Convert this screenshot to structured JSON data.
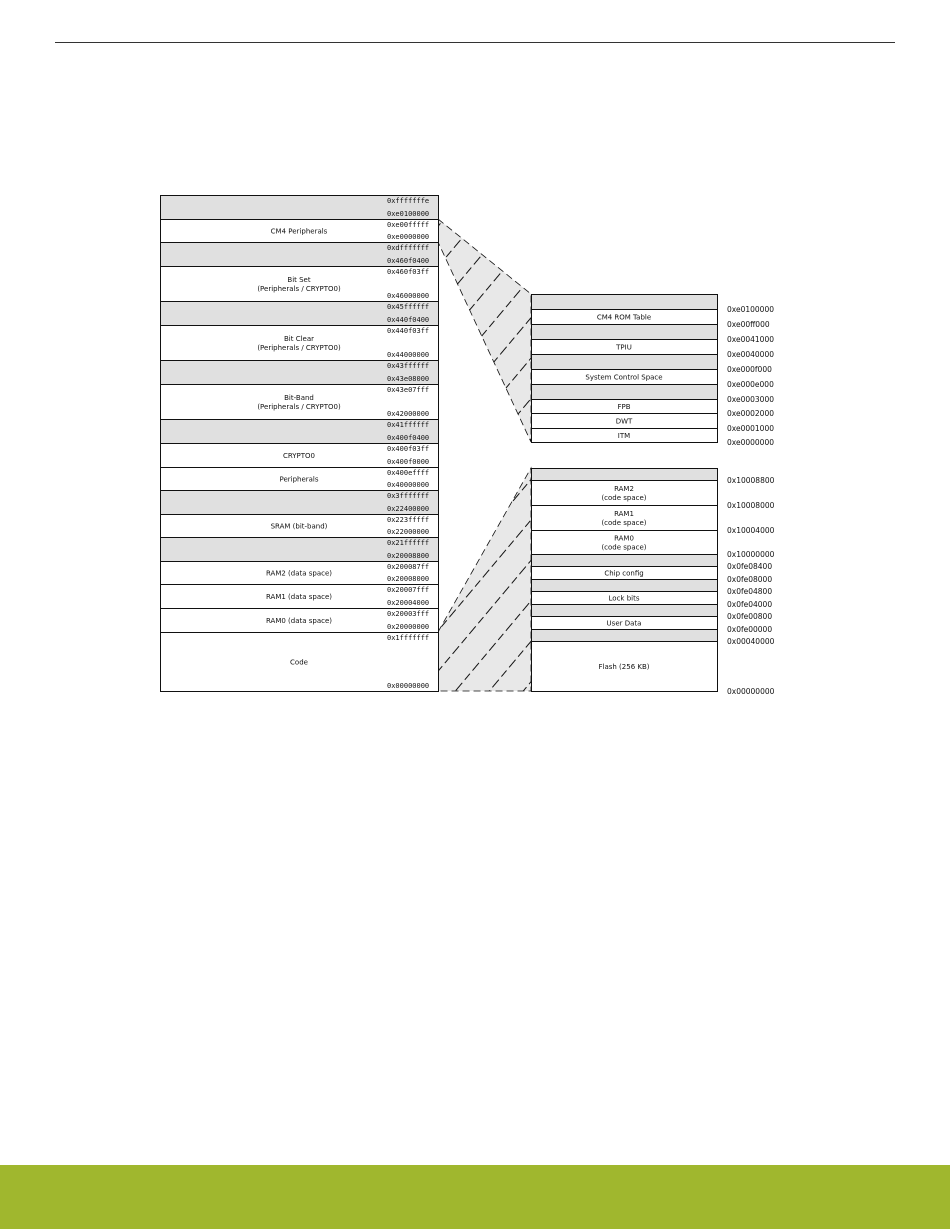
{
  "colors": {
    "reserved_fill": "#e0e0e0",
    "region_fill": "#ffffff",
    "footer": "#a0b72e"
  },
  "memory_map": {
    "main": [
      {
        "label": "",
        "top": "0xfffffffe",
        "bottom": "0xe0100000",
        "reserved": true
      },
      {
        "label": "CM4 Peripherals",
        "top": "0xe00fffff",
        "bottom": "0xe0000000"
      },
      {
        "label": "",
        "top": "0xdfffffff",
        "bottom": "0x460f0400",
        "reserved": true
      },
      {
        "label": "Bit Set\n(Peripherals / CRYPTO0)",
        "top": "0x460f03ff",
        "bottom": "0x46000000"
      },
      {
        "label": "",
        "top": "0x45ffffff",
        "bottom": "0x440f0400",
        "reserved": true
      },
      {
        "label": "Bit Clear\n(Peripherals / CRYPTO0)",
        "top": "0x440f03ff",
        "bottom": "0x44000000"
      },
      {
        "label": "",
        "top": "0x43ffffff",
        "bottom": "0x43e08000",
        "reserved": true
      },
      {
        "label": "Bit-Band\n(Peripherals / CRYPTO0)",
        "top": "0x43e07fff",
        "bottom": "0x42000000"
      },
      {
        "label": "",
        "top": "0x41ffffff",
        "bottom": "0x400f0400",
        "reserved": true
      },
      {
        "label": "CRYPTO0",
        "top": "0x400f03ff",
        "bottom": "0x400f0000"
      },
      {
        "label": "Peripherals",
        "top": "0x400effff",
        "bottom": "0x40000000"
      },
      {
        "label": "",
        "top": "0x3fffffff",
        "bottom": "0x22400000",
        "reserved": true
      },
      {
        "label": "SRAM (bit-band)",
        "top": "0x223fffff",
        "bottom": "0x22000000"
      },
      {
        "label": "",
        "top": "0x21ffffff",
        "bottom": "0x20008800",
        "reserved": true
      },
      {
        "label": "RAM2 (data space)",
        "top": "0x200087ff",
        "bottom": "0x20008000"
      },
      {
        "label": "RAM1 (data space)",
        "top": "0x20007fff",
        "bottom": "0x20004000"
      },
      {
        "label": "RAM0 (data space)",
        "top": "0x20003fff",
        "bottom": "0x20000000"
      },
      {
        "label": "Code",
        "top": "0x1fffffff",
        "bottom": "0x00000000"
      }
    ],
    "cm4_detail": {
      "regions": [
        {
          "label": "",
          "reserved": true
        },
        {
          "label": "CM4 ROM Table"
        },
        {
          "label": "",
          "reserved": true
        },
        {
          "label": "TPIU"
        },
        {
          "label": "",
          "reserved": true
        },
        {
          "label": "System Control Space"
        },
        {
          "label": "",
          "reserved": true
        },
        {
          "label": "FPB"
        },
        {
          "label": "DWT"
        },
        {
          "label": "ITM"
        }
      ],
      "addresses": [
        "0xe0100000",
        "0xe00ff000",
        "0xe0041000",
        "0xe0040000",
        "0xe000f000",
        "0xe000e000",
        "0xe0003000",
        "0xe0002000",
        "0xe0001000",
        "0xe0000000"
      ]
    },
    "code_detail": {
      "regions": [
        {
          "label": "",
          "reserved": true
        },
        {
          "label": "RAM2\n(code space)"
        },
        {
          "label": "RAM1\n(code space)"
        },
        {
          "label": "RAM0\n(code space)"
        },
        {
          "label": "",
          "reserved": true
        },
        {
          "label": "Chip config"
        },
        {
          "label": "",
          "reserved": true
        },
        {
          "label": "Lock bits"
        },
        {
          "label": "",
          "reserved": true
        },
        {
          "label": "User Data"
        },
        {
          "label": "",
          "reserved": true
        },
        {
          "label": "Flash (256 KB)"
        }
      ],
      "addresses": [
        "0x10008800",
        "0x10008000",
        "0x10004000",
        "0x10000000",
        "0x0fe08400",
        "0x0fe08000",
        "0x0fe04800",
        "0x0fe04000",
        "0x0fe00800",
        "0x0fe00000",
        "0x00040000",
        "0x00000000"
      ]
    }
  }
}
